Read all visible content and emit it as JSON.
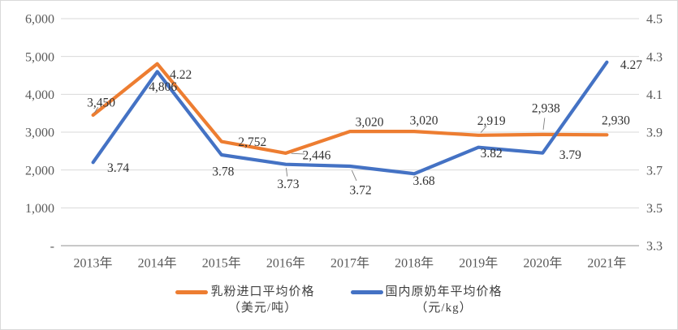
{
  "chart_data": {
    "type": "line",
    "title": "",
    "categories": [
      "2013年",
      "2014年",
      "2015年",
      "2016年",
      "2017年",
      "2018年",
      "2019年",
      "2020年",
      "2021年"
    ],
    "series": [
      {
        "id": "import-milk-powder-price",
        "name": "乳粉进口平均价格（美元/吨）",
        "legend_line1": "乳粉进口平均价格",
        "legend_line2": "（美元/吨）",
        "axis": "left",
        "color": "#ED7D31",
        "values": [
          3450,
          4806,
          2752,
          2446,
          3020,
          3020,
          2919,
          2938,
          2930
        ],
        "labels": [
          "3,450",
          "4,806",
          "2,752",
          "2,446",
          "3,020",
          "3,020",
          "2,919",
          "2,938",
          "2,930"
        ]
      },
      {
        "id": "domestic-raw-milk-price",
        "name": "国内原奶年平均价格（元/kg）",
        "legend_line1": "国内原奶年平均价格",
        "legend_line2": "（元/kg）",
        "axis": "right",
        "color": "#4472C4",
        "values": [
          3.74,
          4.22,
          3.78,
          3.73,
          3.72,
          3.68,
          3.82,
          3.79,
          4.27
        ],
        "labels": [
          "3.74",
          "4.22",
          "3.78",
          "3.73",
          "3.72",
          "3.68",
          "3.82",
          "3.79",
          "4.27"
        ]
      }
    ],
    "left_axis": {
      "min": 0,
      "max": 6000,
      "ticks": [
        "6,000",
        "5,000",
        "4,000",
        "3,000",
        "2,000",
        "1,000",
        "-"
      ]
    },
    "right_axis": {
      "min": 3.3,
      "max": 4.5,
      "ticks": [
        "4.5",
        "4.3",
        "4.1",
        "3.9",
        "3.7",
        "3.5",
        "3.3"
      ]
    },
    "grid": true,
    "legend_position": "bottom",
    "colors": {
      "gridline": "#d9d9d9",
      "axis_line": "#a6a6a6",
      "axis_tick_text": "#595959",
      "data_label_text": "#333333",
      "leader_line": "#7f7f7f",
      "frame_border": "#d9d9d9"
    }
  }
}
